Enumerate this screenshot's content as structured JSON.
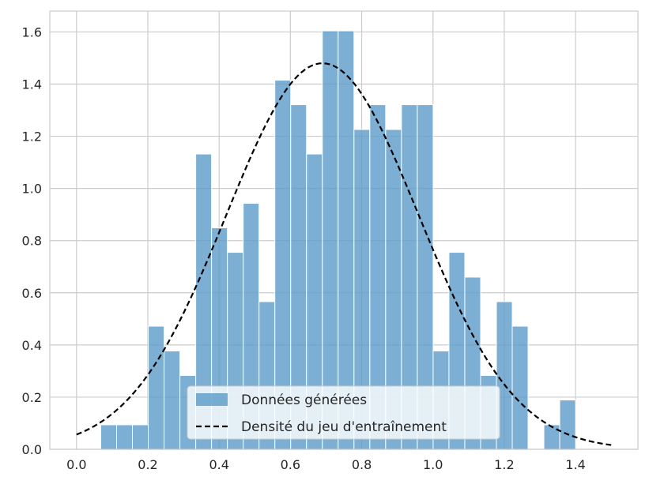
{
  "chart_data": {
    "type": "bar",
    "title": "",
    "xlabel": "",
    "ylabel": "",
    "xlim": [
      -0.075,
      1.575
    ],
    "ylim": [
      0,
      1.68
    ],
    "grid": true,
    "legend_placement": "bottom-center",
    "x_ticks": [
      "0.0",
      "0.2",
      "0.4",
      "0.6",
      "0.8",
      "1.0",
      "1.2",
      "1.4"
    ],
    "x_tick_values": [
      0.0,
      0.2,
      0.4,
      0.6,
      0.8,
      1.0,
      1.2,
      1.4
    ],
    "y_ticks": [
      "0.0",
      "0.2",
      "0.4",
      "0.6",
      "0.8",
      "1.0",
      "1.2",
      "1.4",
      "1.6"
    ],
    "y_tick_values": [
      0.0,
      0.2,
      0.4,
      0.6,
      0.8,
      1.0,
      1.2,
      1.4,
      1.6
    ],
    "histogram": {
      "name": "Données générées",
      "color": "#5b9bc8",
      "bin_start": 0.068,
      "bin_width": 0.0444,
      "values": [
        0.094,
        0.094,
        0.094,
        0.472,
        0.377,
        0.283,
        1.132,
        0.849,
        0.755,
        0.943,
        0.566,
        1.415,
        1.321,
        1.132,
        1.604,
        1.604,
        1.226,
        1.321,
        1.226,
        1.321,
        1.321,
        0.377,
        0.755,
        0.66,
        0.283,
        0.566,
        0.472,
        0.0,
        0.094,
        0.189
      ]
    },
    "density_curve": {
      "name": "Densité du jeu d'entraînement",
      "color": "#000000",
      "style": "dashed",
      "x_range": [
        0.0,
        1.5
      ],
      "peak_x": 0.69,
      "peak_y": 1.48,
      "std": 0.27
    }
  }
}
